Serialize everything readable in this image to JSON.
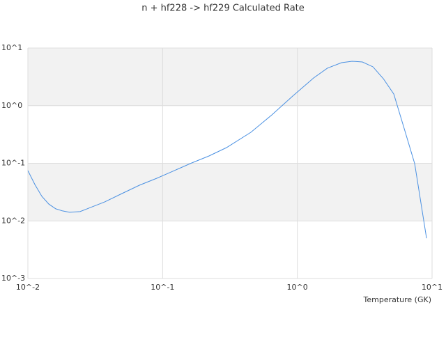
{
  "chart_data": {
    "type": "line",
    "title": "n + hf228 -> hf229 Calculated Rate",
    "x_label": "Temperature (GK)",
    "x": [
      0.01,
      0.01127,
      0.0127,
      0.0143,
      0.0161,
      0.0181,
      0.0204,
      0.0244,
      0.0292,
      0.0371,
      0.0499,
      0.0673,
      0.0906,
      0.122,
      0.164,
      0.221,
      0.298,
      0.452,
      0.647,
      0.925,
      1.32,
      1.67,
      2.13,
      2.55,
      3.04,
      3.64,
      4.35,
      5.2,
      6.22,
      7.43,
      9.1
    ],
    "series": [
      {
        "name": "n + hf228 -> hf229",
        "color": "#4a90e2",
        "values": [
          0.0746,
          0.0428,
          0.0267,
          0.0196,
          0.0162,
          0.0149,
          0.0141,
          0.0145,
          0.0171,
          0.0213,
          0.0298,
          0.0416,
          0.055,
          0.0746,
          0.101,
          0.134,
          0.187,
          0.345,
          0.692,
          1.47,
          3.02,
          4.47,
          5.57,
          5.9,
          5.73,
          4.72,
          2.94,
          1.59,
          0.396,
          0.0986,
          0.005
        ]
      }
    ],
    "xscale": "log",
    "yscale": "log",
    "xlim": [
      0.01,
      10
    ],
    "ylim": [
      0.001,
      10
    ],
    "xticks": [
      {
        "value": 0.01,
        "label": "10^-2"
      },
      {
        "value": 0.1,
        "label": "10^-1"
      },
      {
        "value": 1,
        "label": "10^0"
      },
      {
        "value": 10,
        "label": "10^1"
      }
    ],
    "yticks": [
      {
        "value": 0.001,
        "label": "10^-3"
      },
      {
        "value": 0.01,
        "label": "10^-2"
      },
      {
        "value": 0.1,
        "label": "10^-1"
      },
      {
        "value": 1,
        "label": "10^0"
      },
      {
        "value": 10,
        "label": "10^1"
      }
    ],
    "grid": true,
    "band_color": "#f2f2f2"
  }
}
